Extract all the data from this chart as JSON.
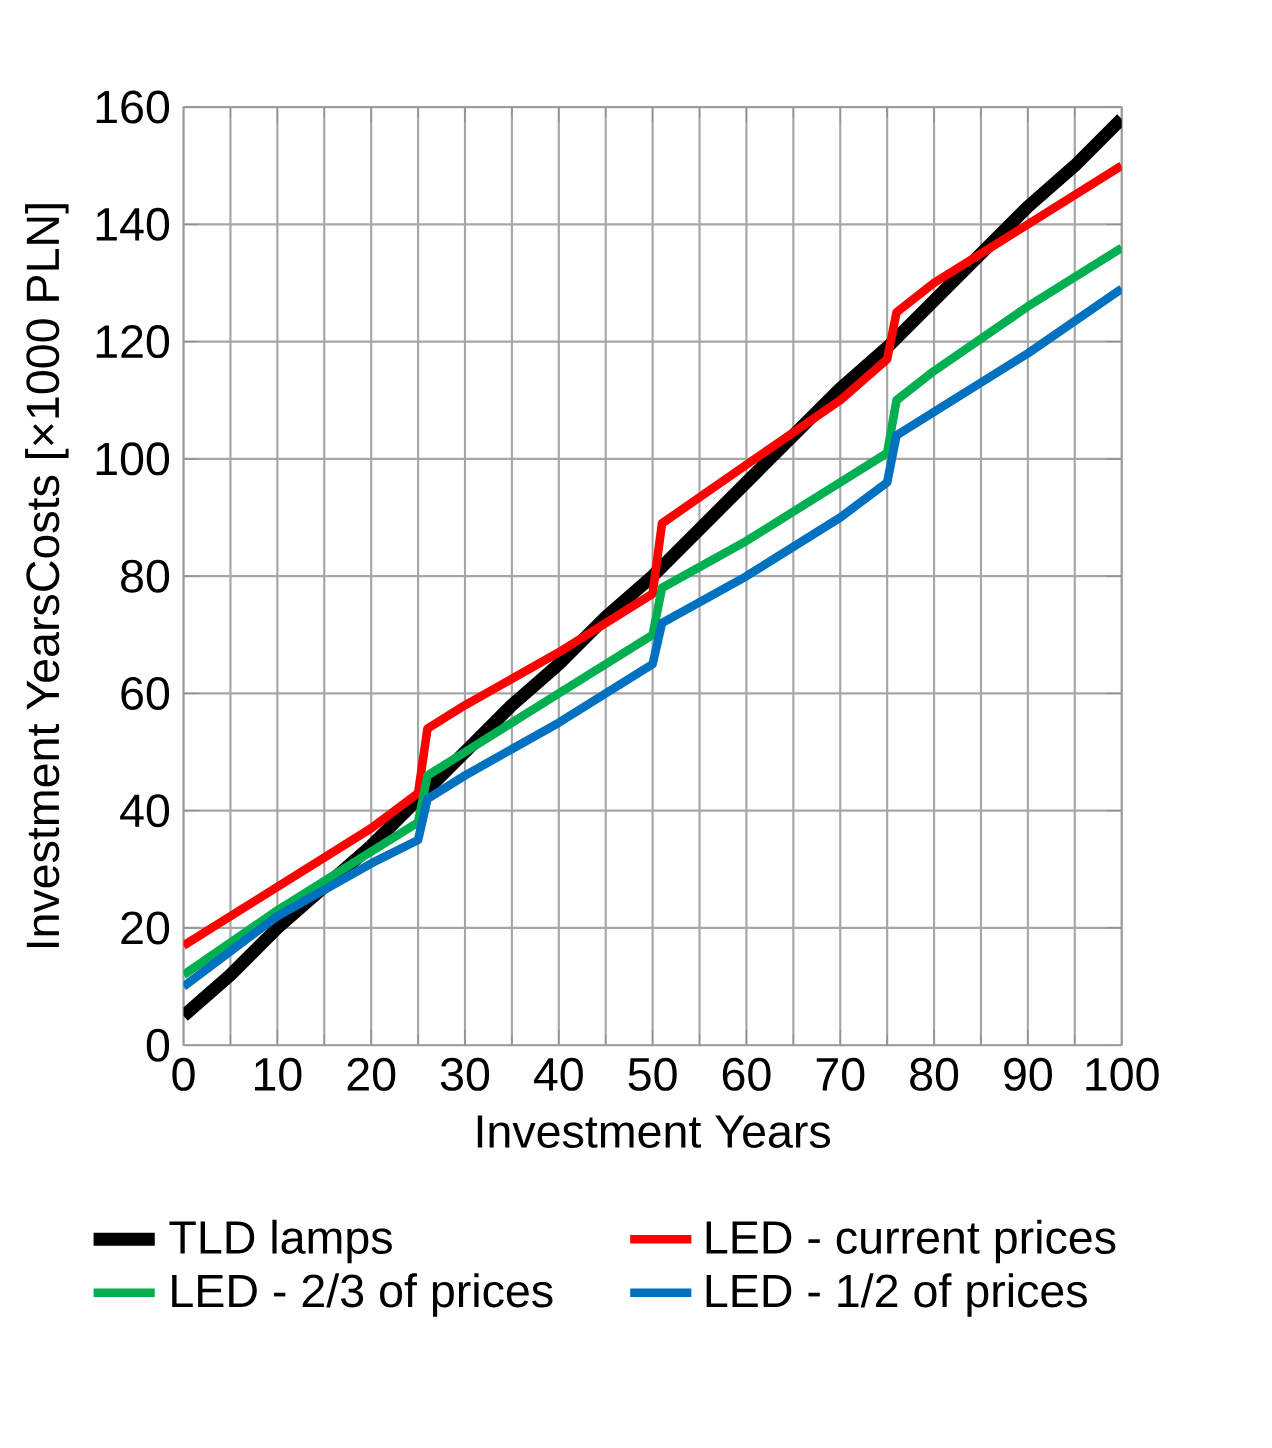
{
  "chart_data": {
    "type": "line",
    "xlabel": "Investment Years",
    "ylabel": "Investment YearsCosts [×1000 PLN]",
    "xlim": [
      0,
      100
    ],
    "ylim": [
      0,
      160
    ],
    "xticks": [
      0,
      10,
      20,
      30,
      40,
      50,
      60,
      70,
      80,
      90,
      100
    ],
    "yticks": [
      0,
      20,
      40,
      60,
      80,
      100,
      120,
      140,
      160
    ],
    "grid": true,
    "legend": "bottom",
    "marker": "none",
    "line_style": "solid",
    "series": [
      {
        "name": "TLD lamps",
        "color": "#000000",
        "x": [
          0,
          5,
          10,
          15,
          20,
          25,
          30,
          35,
          40,
          45,
          50,
          55,
          60,
          65,
          70,
          75,
          80,
          85,
          90,
          95,
          100
        ],
        "values": [
          5,
          12,
          20,
          27,
          34,
          42,
          50,
          58,
          65,
          73,
          80,
          88,
          96,
          104,
          112,
          119,
          127,
          135,
          143,
          150,
          158
        ]
      },
      {
        "name": "LED - current prices",
        "color": "#ff0000",
        "x": [
          0,
          10,
          20,
          25,
          26,
          30,
          40,
          50,
          51,
          60,
          70,
          75,
          76,
          80,
          90,
          100
        ],
        "values": [
          17,
          27,
          37,
          43,
          54,
          58,
          67,
          77,
          89,
          99,
          110,
          117,
          125,
          130,
          140,
          150
        ]
      },
      {
        "name": "LED - 2/3 of prices",
        "color": "#00b050",
        "x": [
          0,
          10,
          20,
          25,
          26,
          30,
          40,
          50,
          51,
          60,
          70,
          75,
          76,
          80,
          90,
          100
        ],
        "values": [
          12,
          23,
          33,
          38,
          46,
          50,
          60,
          70,
          78,
          86,
          96,
          101,
          110,
          115,
          126,
          136
        ]
      },
      {
        "name": "LED - 1/2 of prices",
        "color": "#0070c0",
        "x": [
          0,
          10,
          20,
          25,
          26,
          30,
          40,
          50,
          51,
          60,
          70,
          75,
          76,
          80,
          90,
          100
        ],
        "values": [
          10,
          22,
          31,
          35,
          42,
          46,
          55,
          65,
          72,
          80,
          90,
          96,
          104,
          108,
          118,
          129
        ]
      }
    ]
  }
}
